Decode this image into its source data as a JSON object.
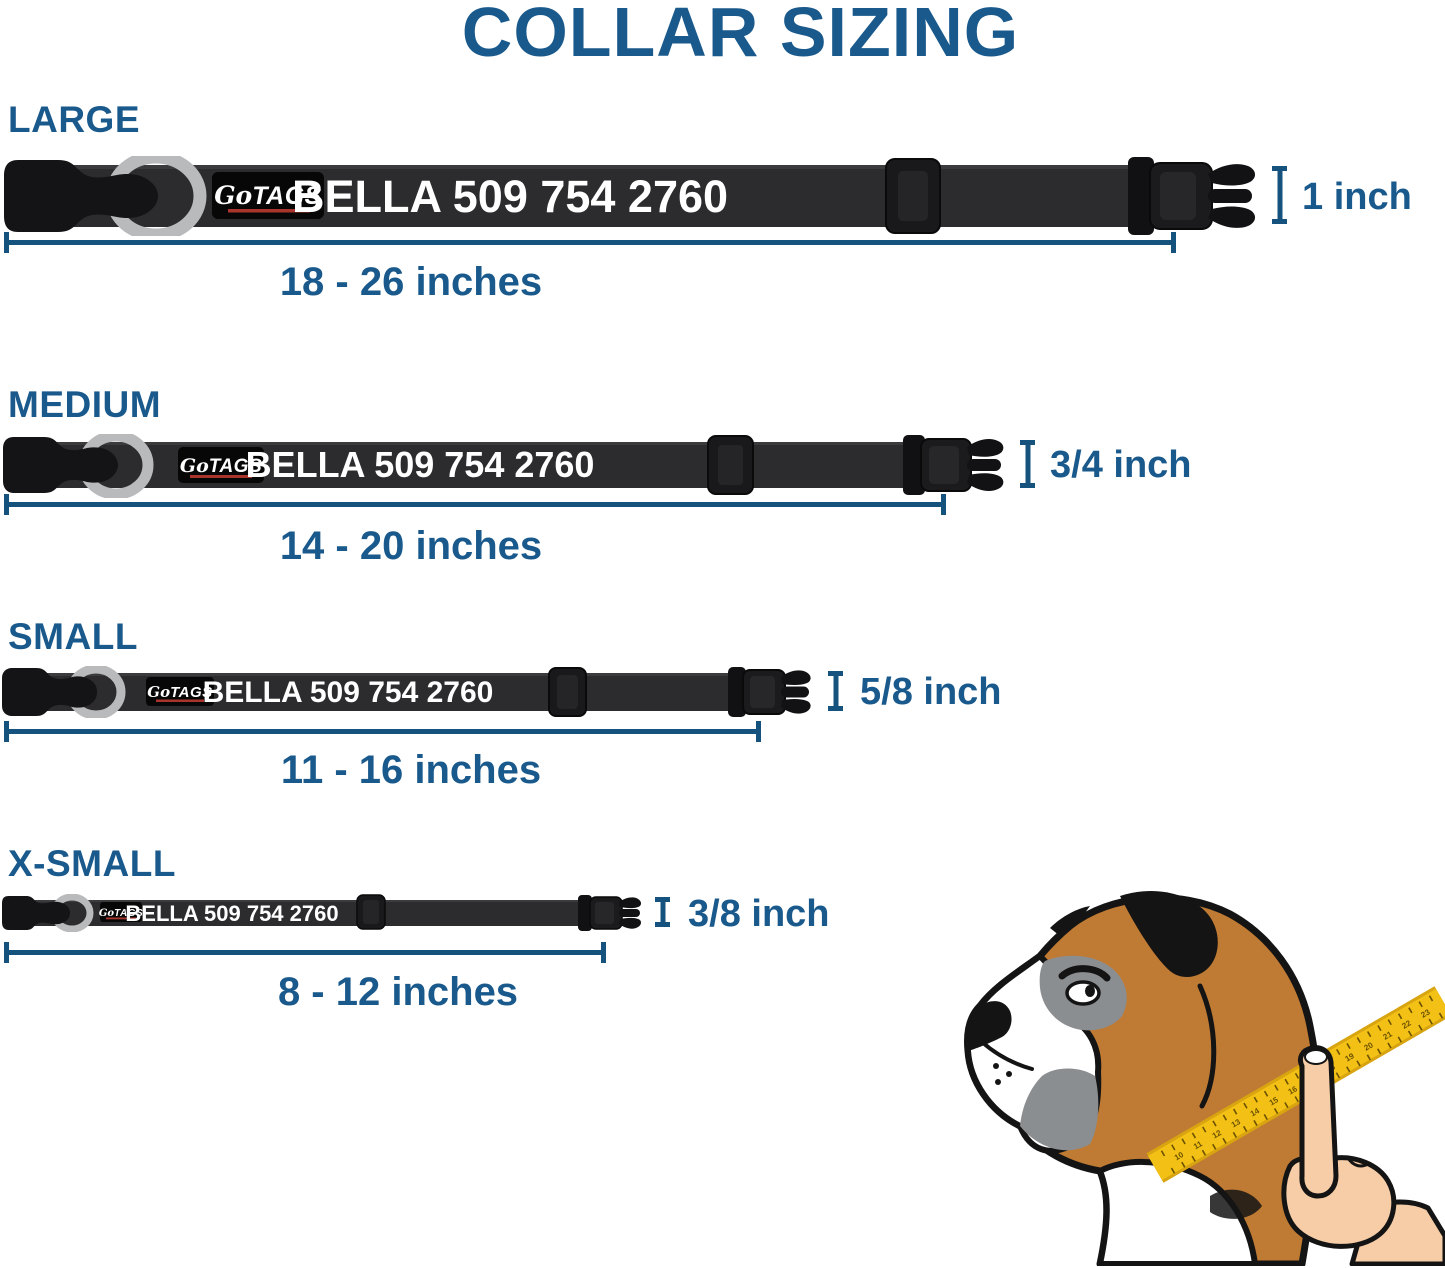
{
  "title": "COLLAR SIZING",
  "collar_personalization": "BELLA 509 754 2760",
  "brand_patch": {
    "script": "Go",
    "bold": "TAGS"
  },
  "sizes": [
    {
      "label": "LARGE",
      "width": "1 inch",
      "length_range": "18 - 26 inches"
    },
    {
      "label": "MEDIUM",
      "width": "3/4 inch",
      "length_range": "14 - 20 inches"
    },
    {
      "label": "SMALL",
      "width": "5/8 inch",
      "length_range": "11 - 16 inches"
    },
    {
      "label": "X-SMALL",
      "width": "3/8 inch",
      "length_range": "8 - 12 inches"
    }
  ],
  "dog": {
    "tape_numbers": [
      "10",
      "11",
      "12",
      "13",
      "14",
      "15",
      "16",
      "17",
      "18",
      "19",
      "20",
      "21",
      "22",
      "23"
    ]
  },
  "colors": {
    "accent_blue": "#19598c",
    "line_blue": "#15527d",
    "collar_strap": "#2c2c2e",
    "buckle_black": "#141416",
    "d_ring_gray": "#b9babc",
    "patch_red": "#a9342c",
    "collar_text_white": "#ffffff",
    "tape_yellow": "#f3c016",
    "dog_tan": "#bf7a33",
    "dog_gray": "#8b8e91",
    "hand_skin": "#f6cda6"
  }
}
